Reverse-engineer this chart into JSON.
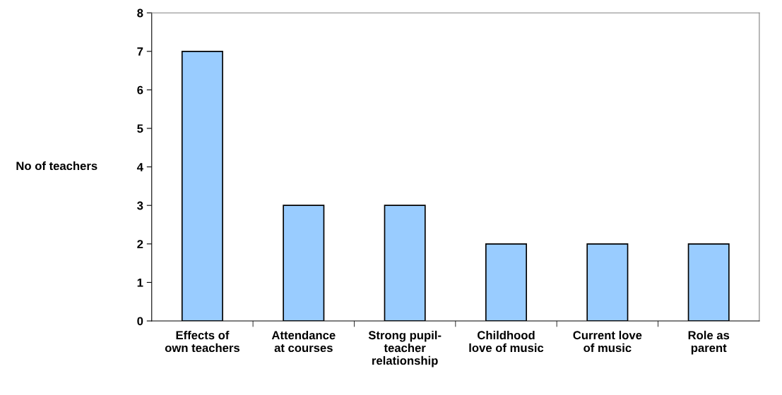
{
  "chart_data": {
    "type": "bar",
    "ylabel": "No of teachers",
    "categories": [
      "Effects of\nown teachers",
      "Attendance\nat courses",
      "Strong pupil-\nteacher\nrelationship",
      "Childhood\nlove of music",
      "Current love\nof music",
      "Role as\nparent"
    ],
    "values": [
      7,
      3,
      3,
      2,
      2,
      2
    ],
    "color": "#99ccff",
    "ylim": [
      0,
      8
    ],
    "yticks": [
      0,
      1,
      2,
      3,
      4,
      5,
      6,
      7,
      8
    ],
    "grid": false,
    "legend": false
  }
}
